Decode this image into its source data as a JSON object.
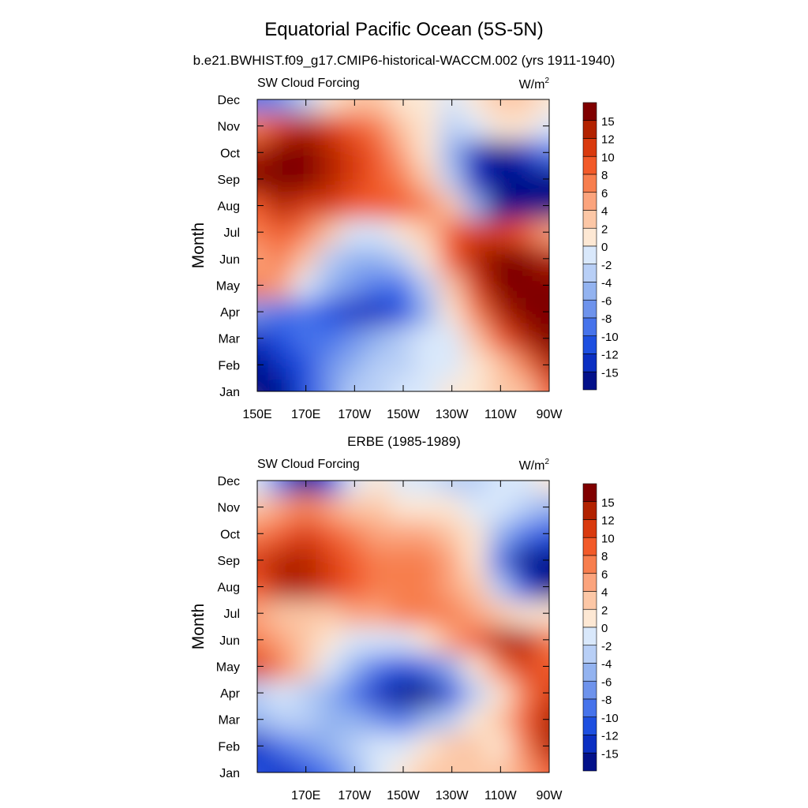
{
  "page": {
    "title": "Equatorial Pacific Ocean (5S-5N)",
    "subtitle": "b.e21.BWHIST.f09_g17.CMIP6-historical-WACCM.002 (yrs 1911-1940)"
  },
  "colorbar": {
    "labels": [
      "15",
      "12",
      "10",
      "8",
      "6",
      "4",
      "2",
      "0",
      "-2",
      "-4",
      "-6",
      "-8",
      "-10",
      "-12",
      "-15"
    ],
    "colors": [
      "#800000",
      "#B22200",
      "#D93A0E",
      "#F25A29",
      "#F77E4E",
      "#FBA47D",
      "#FCC7A6",
      "#FDE8D4",
      "#D9E8FB",
      "#B8CFF6",
      "#93B3F0",
      "#6E93EC",
      "#4673EB",
      "#1D4FE0",
      "#0B2FC2",
      "#03118A"
    ]
  },
  "chart_data": [
    {
      "type": "heatmap",
      "panel_title": "",
      "left_label": "SW Cloud Forcing",
      "units": "W/m",
      "units_sup": "2",
      "ylabel": "Month",
      "ytick_labels": [
        "Jan",
        "Feb",
        "Mar",
        "Apr",
        "May",
        "Jun",
        "Jul",
        "Aug",
        "Sep",
        "Oct",
        "Nov",
        "Dec"
      ],
      "xtick_labels": [
        "150E",
        "170E",
        "170W",
        "150W",
        "130W",
        "110W",
        "90W"
      ],
      "x_range": [
        "150E",
        "90W"
      ],
      "lon_grid": [
        "150E",
        "160E",
        "170E",
        "180",
        "170W",
        "160W",
        "150W",
        "140W",
        "130W",
        "120W",
        "110W",
        "100W",
        "90W"
      ],
      "values": [
        [
          -18,
          -16,
          -12,
          -7,
          -4,
          -3,
          -2,
          -1,
          0,
          1,
          2,
          3,
          9
        ],
        [
          -18,
          -15,
          -11,
          -7,
          -5,
          -4,
          -3,
          -2,
          -1,
          0,
          3,
          6,
          12
        ],
        [
          -14,
          -12,
          -10,
          -9,
          -8,
          -6,
          -4,
          -2,
          -1,
          2,
          8,
          14,
          17
        ],
        [
          -8,
          -9,
          -10,
          -12,
          -14,
          -15,
          -12,
          -6,
          0,
          6,
          14,
          18,
          18
        ],
        [
          6,
          5,
          -2,
          -6,
          -8,
          -10,
          -9,
          -4,
          2,
          10,
          16,
          18,
          17
        ],
        [
          5,
          6,
          2,
          -3,
          -6,
          -6,
          -4,
          0,
          8,
          12,
          16,
          15,
          12
        ],
        [
          6,
          8,
          6,
          2,
          -1,
          -1,
          0,
          3,
          8,
          10,
          10,
          8,
          4
        ],
        [
          9,
          12,
          11,
          10,
          9,
          8,
          8,
          6,
          2,
          -6,
          -16,
          -18,
          -18
        ],
        [
          16,
          18,
          17,
          13,
          10,
          8,
          6,
          3,
          -4,
          -14,
          -18,
          -18,
          -18
        ],
        [
          14,
          16,
          15,
          12,
          10,
          8,
          5,
          1,
          -6,
          -14,
          -16,
          -14,
          -10
        ],
        [
          6,
          10,
          12,
          10,
          8,
          6,
          3,
          0,
          -3,
          -2,
          1,
          0,
          -2
        ],
        [
          -10,
          -8,
          -4,
          0,
          2,
          2,
          1,
          0,
          -1,
          0,
          3,
          2,
          0
        ]
      ]
    },
    {
      "type": "heatmap",
      "panel_title": "ERBE (1985-1989)",
      "left_label": "SW Cloud Forcing",
      "units": "W/m",
      "units_sup": "2",
      "ylabel": "Month",
      "ytick_labels": [
        "Jan",
        "Feb",
        "Mar",
        "Apr",
        "May",
        "Jun",
        "Jul",
        "Aug",
        "Sep",
        "Oct",
        "Nov",
        "Dec"
      ],
      "xtick_labels": [
        "170E",
        "170W",
        "150W",
        "130W",
        "110W",
        "90W"
      ],
      "x_range": [
        "150E",
        "90W"
      ],
      "lon_grid": [
        "150E",
        "160E",
        "170E",
        "180",
        "170W",
        "160W",
        "150W",
        "140W",
        "130W",
        "120W",
        "110W",
        "100W",
        "90W"
      ],
      "values": [
        [
          -12,
          -14,
          -12,
          -10,
          -6,
          -2,
          0,
          2,
          3,
          3,
          2,
          4,
          8
        ],
        [
          -14,
          -10,
          -8,
          -6,
          -4,
          -2,
          -1,
          1,
          2,
          3,
          1,
          6,
          12
        ],
        [
          -6,
          -4,
          -4,
          -5,
          -6,
          -8,
          -9,
          -6,
          -3,
          0,
          2,
          8,
          14
        ],
        [
          -3,
          -2,
          -3,
          -6,
          -10,
          -14,
          -16,
          -16,
          -12,
          -4,
          0,
          6,
          10
        ],
        [
          10,
          6,
          2,
          -2,
          -6,
          -10,
          -12,
          -10,
          -6,
          0,
          6,
          10,
          9
        ],
        [
          6,
          4,
          2,
          0,
          -2,
          -2,
          -1,
          1,
          4,
          8,
          12,
          14,
          6
        ],
        [
          4,
          2,
          2,
          3,
          4,
          5,
          6,
          6,
          6,
          4,
          2,
          0,
          0
        ],
        [
          8,
          12,
          12,
          10,
          8,
          7,
          7,
          6,
          5,
          2,
          -4,
          -12,
          -16
        ],
        [
          10,
          14,
          13,
          11,
          8,
          6,
          6,
          6,
          5,
          0,
          -10,
          -16,
          -18
        ],
        [
          6,
          8,
          10,
          8,
          6,
          5,
          4,
          4,
          3,
          0,
          -6,
          -10,
          -12
        ],
        [
          2,
          4,
          6,
          5,
          3,
          2,
          1,
          1,
          0,
          -2,
          -2,
          -4,
          -6
        ],
        [
          -2,
          -10,
          -16,
          -12,
          -2,
          0,
          -1,
          -2,
          -3,
          -3,
          -1,
          -2,
          0
        ]
      ]
    }
  ]
}
